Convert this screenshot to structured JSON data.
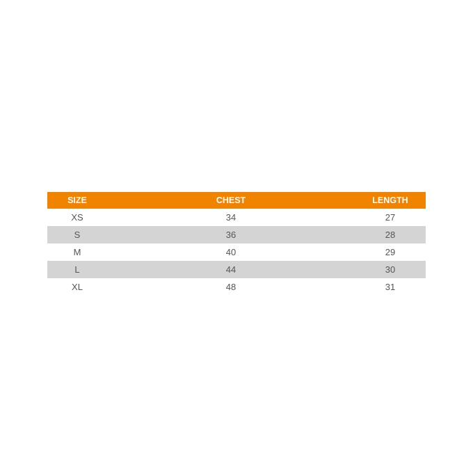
{
  "colors": {
    "header": "#f08400",
    "stripe": "#d4d4d4"
  },
  "headers": [
    "SIZE",
    "CHEST",
    "LENGTH"
  ],
  "rows": [
    [
      "XS",
      "34",
      "27"
    ],
    [
      "S",
      "36",
      "28"
    ],
    [
      "M",
      "40",
      "29"
    ],
    [
      "L",
      "44",
      "30"
    ],
    [
      "XL",
      "48",
      "31"
    ]
  ]
}
